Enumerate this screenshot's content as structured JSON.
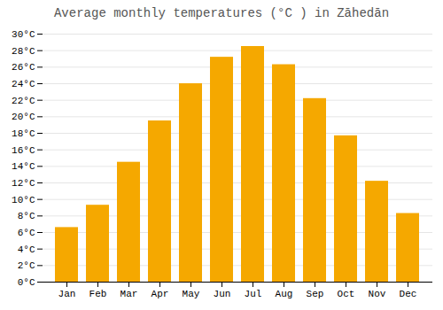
{
  "chart_data": {
    "type": "bar",
    "title": "Average monthly temperatures (°C ) in Zāhedān",
    "categories": [
      "Jan",
      "Feb",
      "Mar",
      "Apr",
      "May",
      "Jun",
      "Jul",
      "Aug",
      "Sep",
      "Oct",
      "Nov",
      "Dec"
    ],
    "values": [
      6.6,
      9.3,
      14.5,
      19.5,
      24.0,
      27.2,
      28.5,
      26.3,
      22.2,
      17.7,
      12.2,
      8.3
    ],
    "color": "#F5A800",
    "ylim": [
      0,
      30
    ],
    "yticks": [
      {
        "value": 0,
        "label": "0°C"
      },
      {
        "value": 2,
        "label": "2°C"
      },
      {
        "value": 4,
        "label": "4°C"
      },
      {
        "value": 6,
        "label": "6°C"
      },
      {
        "value": 8,
        "label": "8°C"
      },
      {
        "value": 10,
        "label": "10°C"
      },
      {
        "value": 12,
        "label": "12°C"
      },
      {
        "value": 14,
        "label": "14°C"
      },
      {
        "value": 16,
        "label": "16°C"
      },
      {
        "value": 18,
        "label": "18°C"
      },
      {
        "value": 20,
        "label": "20°C"
      },
      {
        "value": 22,
        "label": "22°C"
      },
      {
        "value": 24,
        "label": "24°C"
      },
      {
        "value": 26,
        "label": "26°C"
      },
      {
        "value": 28,
        "label": "28°C"
      },
      {
        "value": 30,
        "label": "30°C"
      }
    ],
    "grid": true
  }
}
